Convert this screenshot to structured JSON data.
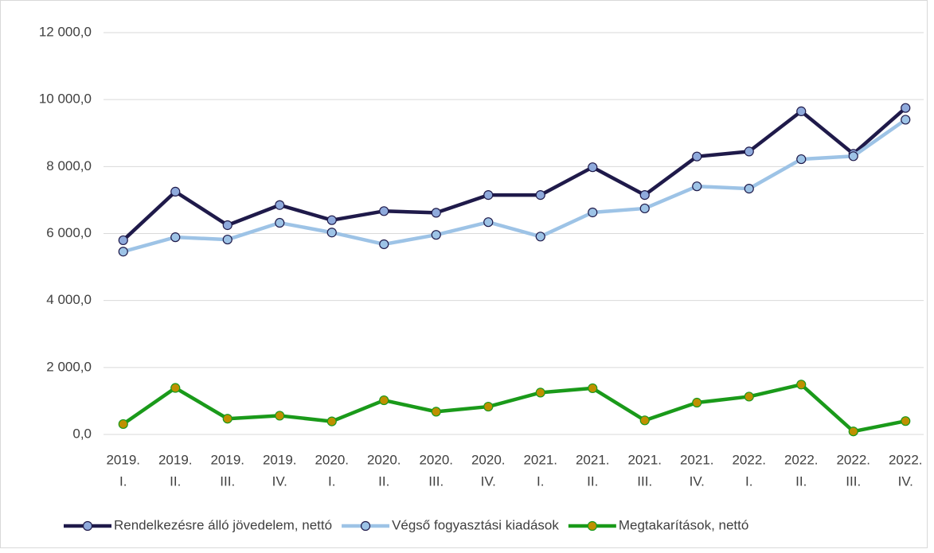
{
  "chart_data": {
    "type": "line",
    "categories": [
      [
        "2019.",
        "I."
      ],
      [
        "2019.",
        "II."
      ],
      [
        "2019.",
        "III."
      ],
      [
        "2019.",
        "IV."
      ],
      [
        "2020.",
        "I."
      ],
      [
        "2020.",
        "II."
      ],
      [
        "2020.",
        "III."
      ],
      [
        "2020.",
        "IV."
      ],
      [
        "2021.",
        "I."
      ],
      [
        "2021.",
        "II."
      ],
      [
        "2021.",
        "III."
      ],
      [
        "2021.",
        "IV."
      ],
      [
        "2022.",
        "I."
      ],
      [
        "2022.",
        "II."
      ],
      [
        "2022.",
        "III."
      ],
      [
        "2022.",
        "IV."
      ]
    ],
    "series": [
      {
        "name": "Rendelkezésre álló jövedelem, nettó",
        "color": "#1f1a4a",
        "marker_color": "#8faadc",
        "values": [
          5800,
          7250,
          6250,
          6850,
          6400,
          6670,
          6620,
          7150,
          7150,
          7980,
          7150,
          8300,
          8450,
          9650,
          8380,
          9750
        ]
      },
      {
        "name": "Végső fogyasztási kiadások",
        "color": "#9dc3e6",
        "marker_color": "#9dc3e6",
        "values": [
          5460,
          5890,
          5820,
          6320,
          6030,
          5680,
          5960,
          6340,
          5910,
          6630,
          6750,
          7410,
          7340,
          8220,
          8310,
          9400
        ]
      },
      {
        "name": "Megtakarítások, nettó",
        "color": "#1a9a1a",
        "marker_color": "#bf9000",
        "values": [
          310,
          1390,
          470,
          560,
          390,
          1020,
          680,
          830,
          1250,
          1380,
          420,
          950,
          1130,
          1490,
          90,
          400
        ]
      }
    ],
    "ylim": [
      0,
      12000
    ],
    "yticks": [
      {
        "value": 0,
        "label": "0,0"
      },
      {
        "value": 2000,
        "label": "2 000,0"
      },
      {
        "value": 4000,
        "label": "4 000,0"
      },
      {
        "value": 6000,
        "label": "6 000,0"
      },
      {
        "value": 8000,
        "label": "8 000,0"
      },
      {
        "value": 10000,
        "label": "10 000,0"
      },
      {
        "value": 12000,
        "label": "12 000,0"
      }
    ],
    "grid": true,
    "legend": "bottom"
  }
}
